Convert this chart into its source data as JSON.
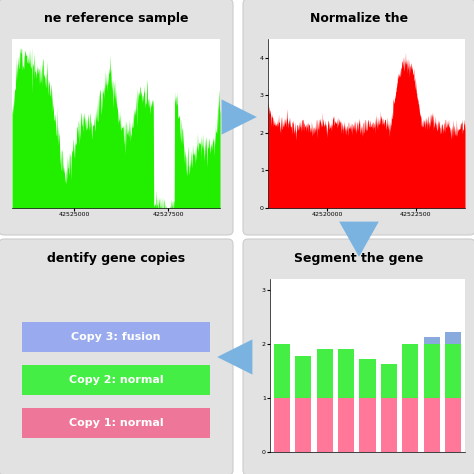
{
  "bg_color": "#ffffff",
  "panel_color": "#e2e2e2",
  "panel_inner_color": "#ffffff",
  "arrow_color": "#7ab3e0",
  "title1": "ne reference sample",
  "title2": "Normalize the",
  "title3": "dentify gene copies",
  "title4": "Segment the gene",
  "green_fill_color": "#22ee00",
  "red_fill_color": "#ff0000",
  "pink_bar_color": "#ff7799",
  "green_bar_color": "#44ee44",
  "blue_bar_color": "#88aadd",
  "xlabel1a": "42525000",
  "xlabel1b": "42527500",
  "xlabel2a": "42520000",
  "xlabel2b": "42522500",
  "yticks2": [
    0,
    1,
    2,
    3,
    4
  ],
  "yticks4": [
    0,
    1,
    2,
    3
  ],
  "bar_pink": [
    1.0,
    1.0,
    1.0,
    1.0,
    1.0,
    1.0,
    1.0,
    1.0,
    1.0
  ],
  "bar_green": [
    1.0,
    0.78,
    0.9,
    0.9,
    0.72,
    0.62,
    1.0,
    1.0,
    1.0
  ],
  "bar_blue": [
    0.0,
    0.0,
    0.0,
    0.0,
    0.0,
    0.0,
    0.0,
    0.12,
    0.22
  ],
  "copy3_label": "Copy 3: fusion",
  "copy2_label": "Copy 2: normal",
  "copy1_label": "Copy 1: normal",
  "copy3_color": "#99aaee",
  "copy2_color": "#44ee44",
  "copy1_color": "#ee7799"
}
